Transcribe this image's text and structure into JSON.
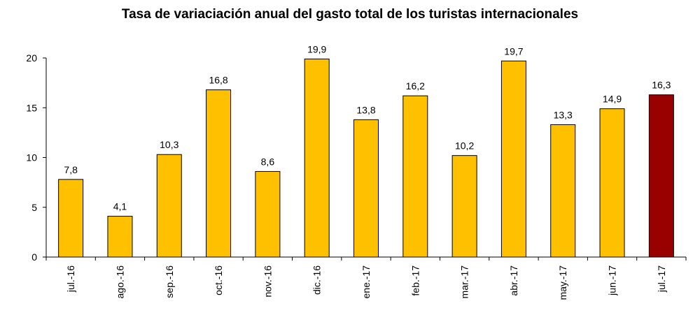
{
  "chart_data": {
    "type": "bar",
    "title": "Tasa de variaciación anual del gasto total de los turistas internacionales",
    "xlabel": "",
    "ylabel": "",
    "categories": [
      "jul.-16",
      "ago.-16",
      "sep.-16",
      "oct.-16",
      "nov.-16",
      "dic.-16",
      "ene.-17",
      "feb.-17",
      "mar.-17",
      "abr.-17",
      "may.-17",
      "jun.-17",
      "jul.-17"
    ],
    "values": [
      7.8,
      4.1,
      10.3,
      16.8,
      8.6,
      19.9,
      13.8,
      16.2,
      10.2,
      19.7,
      13.3,
      14.9,
      16.3
    ],
    "value_labels": [
      "7,8",
      "4,1",
      "10,3",
      "16,8",
      "8,6",
      "19,9",
      "13,8",
      "16,2",
      "10,2",
      "19,7",
      "13,3",
      "14,9",
      "16,3"
    ],
    "ylim": [
      0,
      20
    ],
    "yticks": [
      0,
      5,
      10,
      15,
      20
    ],
    "grid": false,
    "colors": {
      "bar": "#ffc000",
      "highlight": "#990000",
      "highlight_index": 12,
      "bar_stroke": "#000000"
    }
  }
}
